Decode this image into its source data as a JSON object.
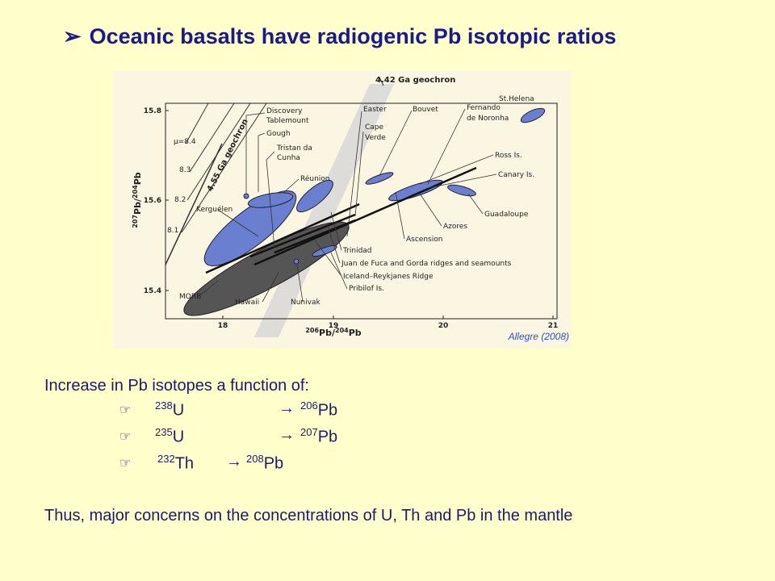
{
  "header": {
    "bullet": "➢",
    "title": "Oceanic basalts have radiogenic Pb isotopic ratios"
  },
  "figure": {
    "x_label": {
      "sup1": "206",
      "t1": "Pb/",
      "sup2": "204",
      "t2": "Pb"
    },
    "y_label": {
      "sup1": "207",
      "t1": "Pb/",
      "sup2": "204",
      "t2": "Pb"
    },
    "x_ticks": [
      "18",
      "19",
      "20",
      "21"
    ],
    "y_ticks": [
      "15.8",
      "15.6",
      "15.4"
    ],
    "mu_labels": [
      "μ=8.4",
      "8.3",
      "8.2",
      "8.1"
    ],
    "geochron_442": "4.42 Ga geochron",
    "geochron_455": "4.55 Ga geochron",
    "labels": [
      "St.Helena",
      "Discovery",
      "Tablemount",
      "Gough",
      "Tristan da",
      "Cunha",
      "Réunion",
      "Kerguélen",
      "MORB",
      "Hawaii",
      "Nunivak",
      "Pribilof Is.",
      "Iceland–Reykjanes Ridge",
      "Juan de Fuca and Gorda ridges and seamounts",
      "Trinidad",
      "Ascension",
      "Azores",
      "Guadaloupe",
      "Canary Is.",
      "Ross Is.",
      "Bouvet",
      "Fernando",
      "de Noronha",
      "Easter",
      "Cape",
      "Verde"
    ],
    "source": "Allegre (2008)"
  },
  "body": {
    "intro": "Increase in Pb isotopes a function of:",
    "list": {
      "bullet": "☞",
      "arrow": "→",
      "rows": [
        {
          "pm": "238",
          "p": "U",
          "dm": "206",
          "d": "Pb"
        },
        {
          "pm": "235",
          "p": "U",
          "dm": "207",
          "d": "Pb"
        },
        {
          "pm": "232",
          "p": "Th",
          "dm": "208",
          "d": "Pb"
        }
      ]
    },
    "conclusion": "Thus, major concerns on the concentrations of U, Th and Pb in the mantle"
  }
}
